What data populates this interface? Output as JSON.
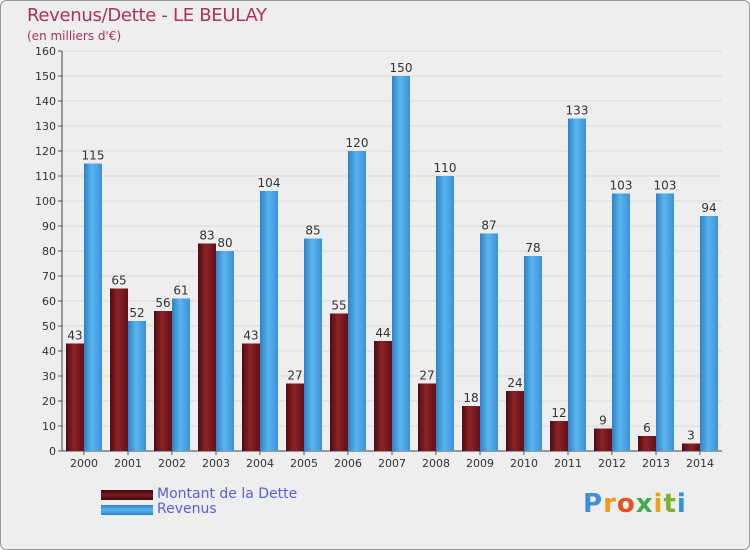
{
  "title": "Revenus/Dette - LE BEULAY",
  "subtitle": "(en milliers d'€)",
  "logo_text": "Proxiti",
  "legend": {
    "debt_label": "Montant de la Dette",
    "revenue_label": "Revenus"
  },
  "colors": {
    "debt": "#7a1a1e",
    "revenue": "#4aa3e3",
    "title": "#b0305a",
    "legend_text": "#5860e0"
  },
  "chart_data": {
    "type": "bar",
    "title": "Revenus/Dette - LE BEULAY",
    "ylabel": "(en milliers d'€)",
    "xlabel": "",
    "ylim": [
      0,
      160
    ],
    "ytick_step": 10,
    "grid": true,
    "legend_position": "bottom-left",
    "categories": [
      "2000",
      "2001",
      "2002",
      "2003",
      "2004",
      "2005",
      "2006",
      "2007",
      "2008",
      "2009",
      "2010",
      "2011",
      "2012",
      "2013",
      "2014"
    ],
    "series": [
      {
        "name": "Montant de la Dette",
        "values": [
          43,
          65,
          56,
          83,
          43,
          27,
          55,
          44,
          27,
          18,
          24,
          12,
          9,
          6,
          3
        ]
      },
      {
        "name": "Revenus",
        "values": [
          115,
          52,
          61,
          80,
          104,
          85,
          120,
          150,
          110,
          87,
          78,
          133,
          103,
          103,
          94
        ]
      }
    ]
  }
}
